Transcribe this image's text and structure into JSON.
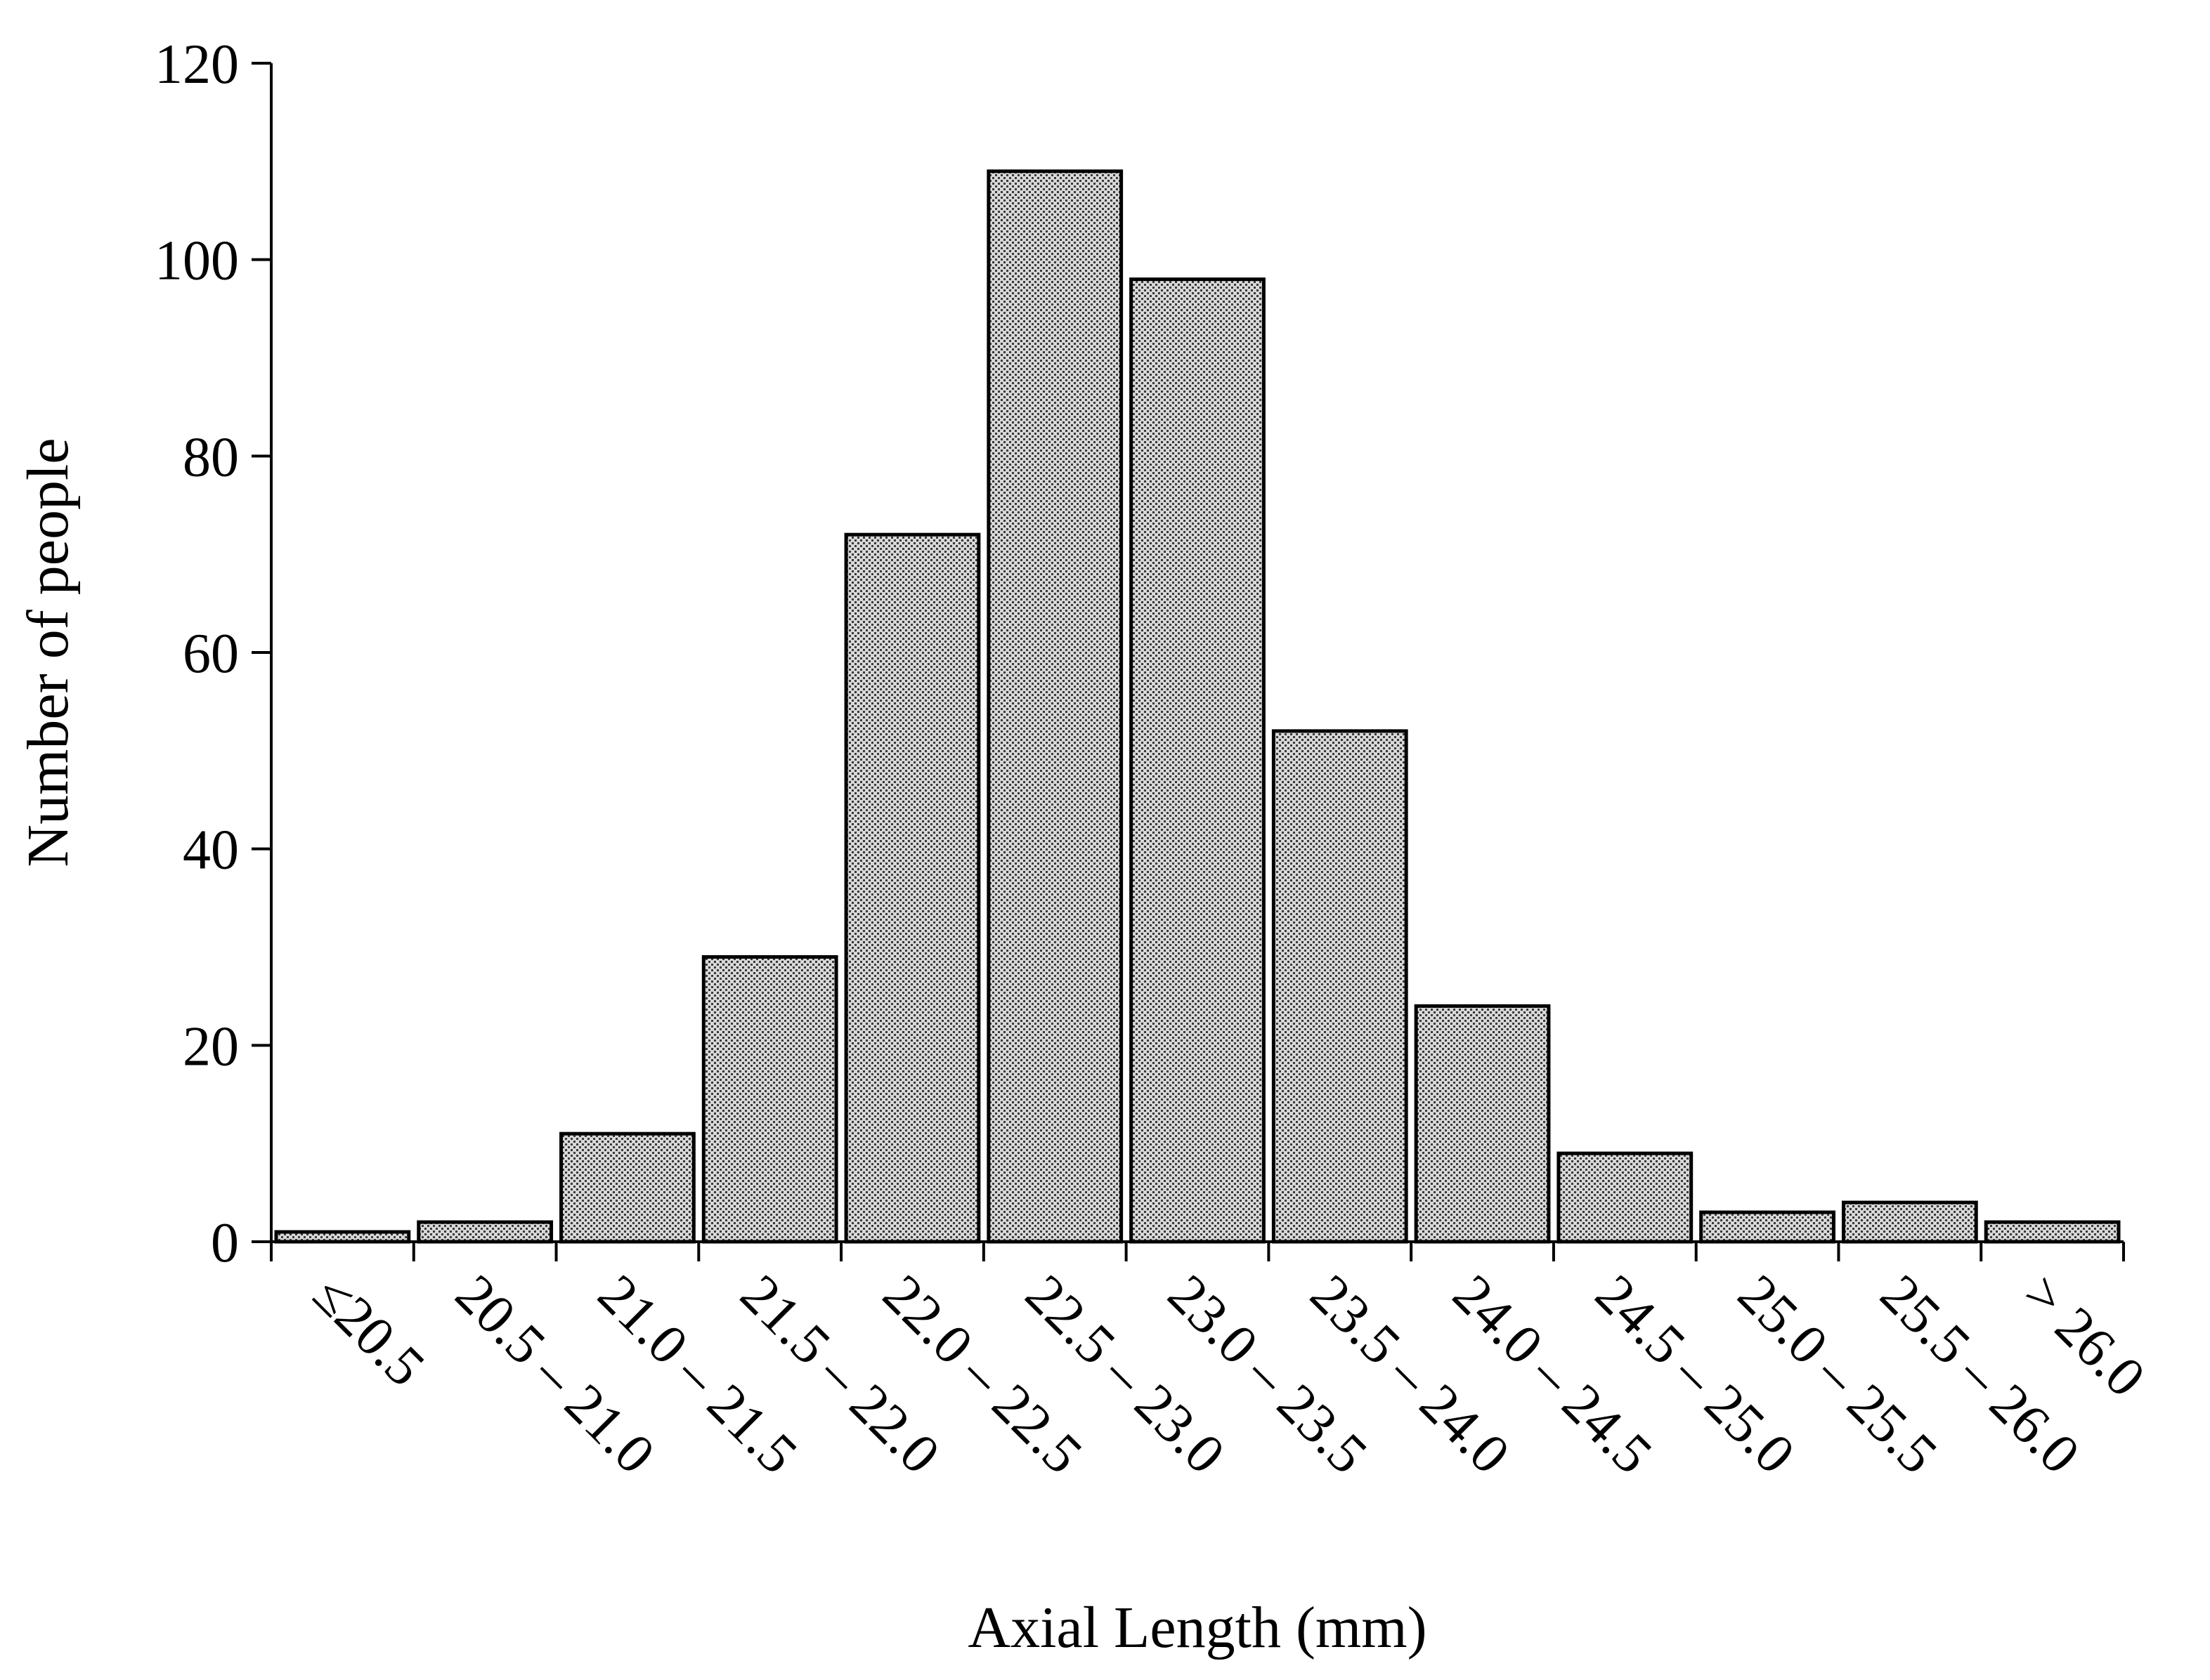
{
  "chart_data": {
    "type": "bar",
    "title": "",
    "xlabel": "Axial Length (mm)",
    "ylabel": "Number of people",
    "categories": [
      "≤20.5",
      "20.5 – 21.0",
      "21.0 – 21.5",
      "21.5 – 22.0",
      "22.0 – 22.5",
      "22.5 – 23.0",
      "23.0 – 23.5",
      "23.5 – 24.0",
      "24.0 – 24.5",
      "24.5 – 25.0",
      "25.0 – 25.5",
      "25.5 – 26.0",
      "> 26.0"
    ],
    "values": [
      1,
      2,
      11,
      29,
      72,
      109,
      98,
      52,
      24,
      9,
      3,
      4,
      2
    ],
    "ylim": [
      0,
      120
    ],
    "yticks": [
      0,
      20,
      40,
      60,
      80,
      100,
      120
    ],
    "grid": false,
    "legend": "none",
    "bar_fill": "dotted-gray",
    "bar_stroke": "#000000"
  }
}
